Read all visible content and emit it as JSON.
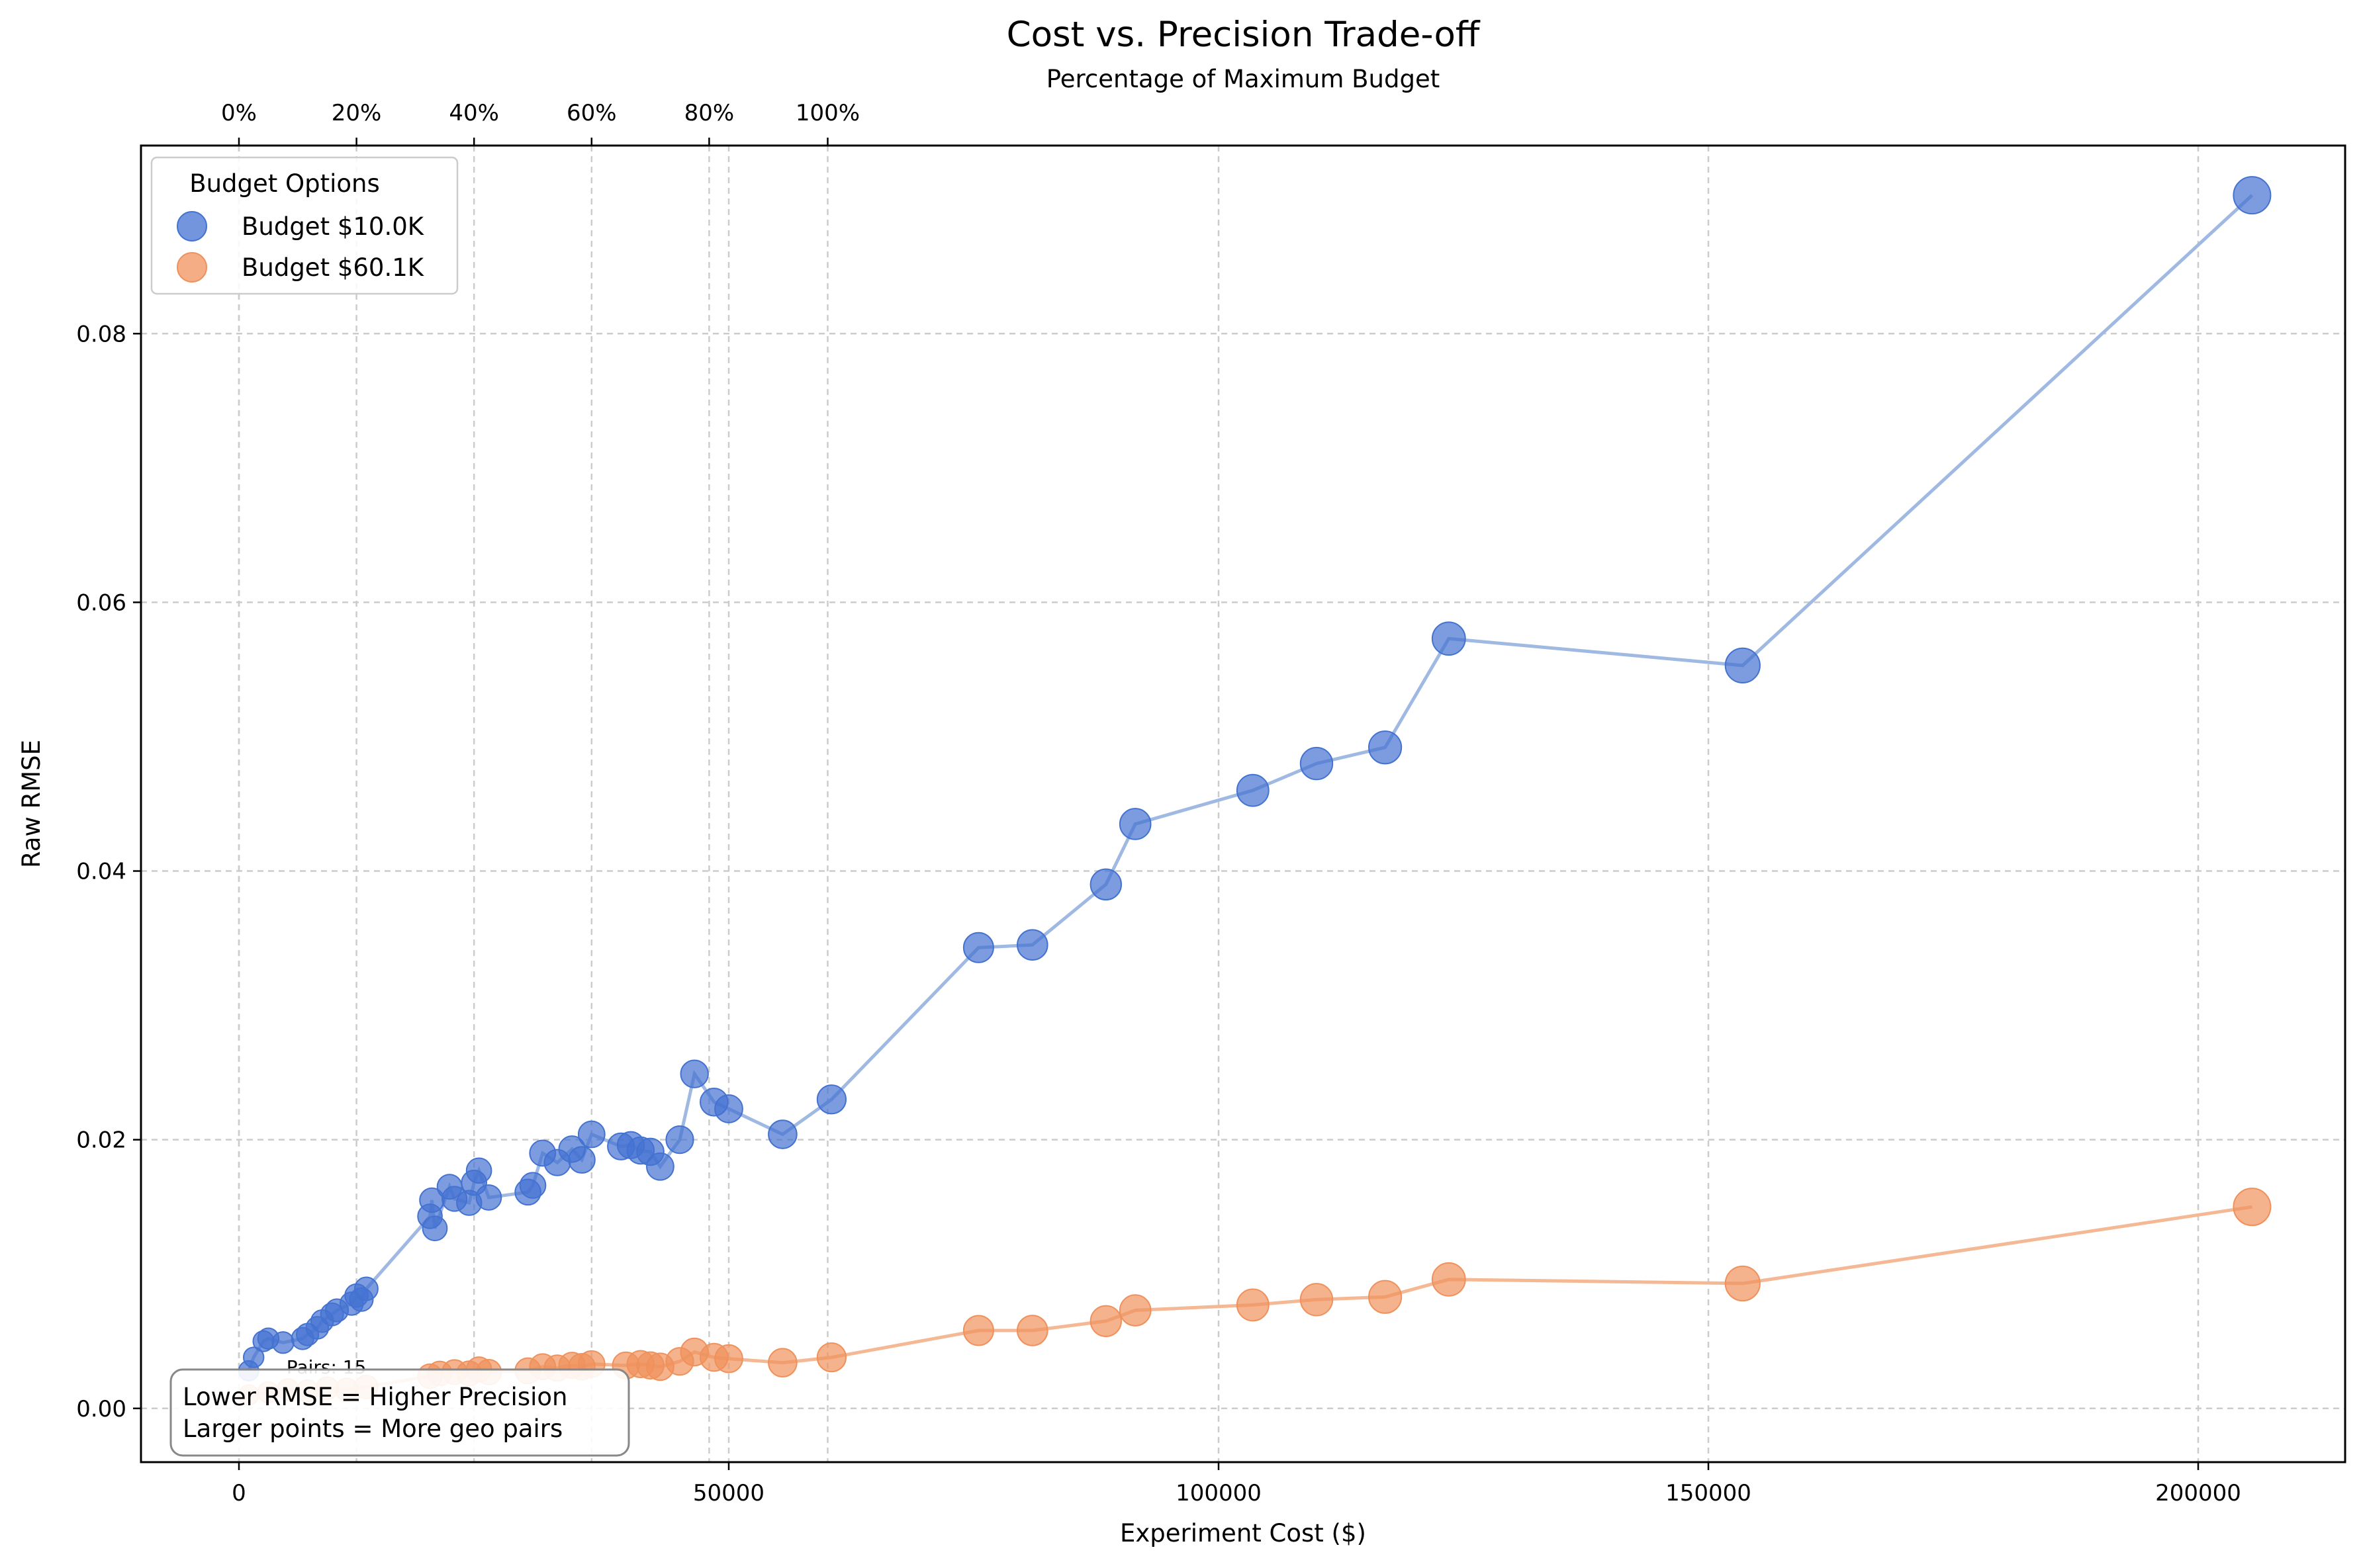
{
  "chart_data": {
    "type": "scatter",
    "title": "Cost vs. Precision Trade-off",
    "secondary_axis_label": "Percentage of Maximum Budget",
    "xlabel": "Experiment Cost ($)",
    "ylabel": "Raw RMSE",
    "xlim": [
      -10000,
      215000
    ],
    "ylim": [
      -0.004,
      0.094
    ],
    "x_ticks": [
      0,
      50000,
      100000,
      150000,
      200000
    ],
    "x_tick_labels": [
      "0",
      "50000",
      "100000",
      "150000",
      "200000"
    ],
    "y_ticks": [
      0.0,
      0.02,
      0.04,
      0.06,
      0.08
    ],
    "y_tick_labels": [
      "0.00",
      "0.02",
      "0.04",
      "0.06",
      "0.08"
    ],
    "top_ticks_cost": [
      0,
      12000,
      24000,
      36000,
      48000,
      60100
    ],
    "top_tick_labels": [
      "0%",
      "20%",
      "40%",
      "60%",
      "80%",
      "100%"
    ],
    "grid": true,
    "legend": {
      "title": "Budget Options",
      "placement": "upper-left"
    },
    "annotation": {
      "lines": [
        "Lower RMSE = Higher Precision",
        "Larger points = More geo pairs"
      ],
      "placement": "bottom-left"
    },
    "point_label": {
      "text": "Pairs: 15",
      "x": 3500,
      "y": 0.003
    },
    "series": [
      {
        "name": "Budget $10.0K",
        "color": "#4472d1",
        "line_color": "#9fb9e2",
        "points": [
          [
            1000,
            0.0028
          ],
          [
            1500,
            0.0038
          ],
          [
            2500,
            0.005
          ],
          [
            3000,
            0.0052
          ],
          [
            4500,
            0.0049
          ],
          [
            6500,
            0.0052
          ],
          [
            7000,
            0.0055
          ],
          [
            8000,
            0.006
          ],
          [
            8500,
            0.0065
          ],
          [
            9500,
            0.007
          ],
          [
            10000,
            0.0073
          ],
          [
            11500,
            0.0078
          ],
          [
            12000,
            0.0084
          ],
          [
            12500,
            0.0081
          ],
          [
            13000,
            0.0089
          ],
          [
            19500,
            0.0143
          ],
          [
            19700,
            0.0155
          ],
          [
            20000,
            0.0134
          ],
          [
            21500,
            0.0165
          ],
          [
            22000,
            0.0156
          ],
          [
            23500,
            0.0153
          ],
          [
            24000,
            0.0168
          ],
          [
            24500,
            0.0177
          ],
          [
            25500,
            0.0157
          ],
          [
            29500,
            0.0161
          ],
          [
            30000,
            0.0166
          ],
          [
            31000,
            0.019
          ],
          [
            32500,
            0.0183
          ],
          [
            34000,
            0.0193
          ],
          [
            35000,
            0.0185
          ],
          [
            36000,
            0.0204
          ],
          [
            39000,
            0.0195
          ],
          [
            40000,
            0.0196
          ],
          [
            41000,
            0.0192
          ],
          [
            42000,
            0.0191
          ],
          [
            43000,
            0.018
          ],
          [
            45000,
            0.02
          ],
          [
            46500,
            0.0249
          ],
          [
            48500,
            0.0228
          ],
          [
            50000,
            0.0223
          ],
          [
            55500,
            0.0204
          ],
          [
            60500,
            0.023
          ],
          [
            75500,
            0.0343
          ],
          [
            81000,
            0.0345
          ],
          [
            88500,
            0.039
          ],
          [
            91500,
            0.0435
          ],
          [
            103500,
            0.046
          ],
          [
            110000,
            0.048
          ],
          [
            117000,
            0.0492
          ],
          [
            123500,
            0.0573
          ],
          [
            153500,
            0.0553
          ],
          [
            205500,
            0.0903
          ]
        ]
      },
      {
        "name": "Budget $60.1K",
        "color": "#f0915c",
        "line_color": "#f5b894",
        "points": [
          [
            1000,
            0.001
          ],
          [
            3000,
            0.0012
          ],
          [
            5000,
            0.0014
          ],
          [
            7000,
            0.0013
          ],
          [
            9000,
            0.0015
          ],
          [
            11000,
            0.0014
          ],
          [
            13000,
            0.0016
          ],
          [
            19500,
            0.0024
          ],
          [
            20500,
            0.0026
          ],
          [
            22000,
            0.0027
          ],
          [
            23500,
            0.0026
          ],
          [
            24500,
            0.0029
          ],
          [
            25500,
            0.0027
          ],
          [
            29500,
            0.0028
          ],
          [
            31000,
            0.0031
          ],
          [
            32500,
            0.003
          ],
          [
            34000,
            0.0032
          ],
          [
            35000,
            0.0031
          ],
          [
            36000,
            0.0033
          ],
          [
            39500,
            0.0032
          ],
          [
            41000,
            0.0033
          ],
          [
            42000,
            0.0032
          ],
          [
            43000,
            0.0031
          ],
          [
            45000,
            0.0035
          ],
          [
            46500,
            0.0042
          ],
          [
            48500,
            0.0038
          ],
          [
            50000,
            0.0037
          ],
          [
            55500,
            0.0034
          ],
          [
            60500,
            0.0038
          ],
          [
            75500,
            0.0058
          ],
          [
            81000,
            0.0058
          ],
          [
            88500,
            0.0065
          ],
          [
            91500,
            0.0073
          ],
          [
            103500,
            0.0077
          ],
          [
            110000,
            0.0081
          ],
          [
            117000,
            0.0083
          ],
          [
            123500,
            0.0096
          ],
          [
            153500,
            0.0093
          ],
          [
            205500,
            0.015
          ]
        ]
      }
    ]
  }
}
